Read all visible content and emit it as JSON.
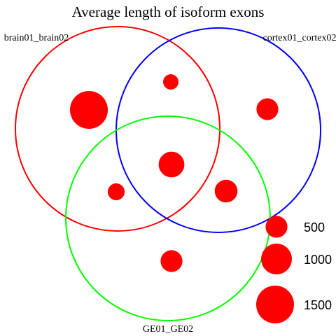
{
  "chart_data": {
    "type": "venn-bubble",
    "title": "Average length of isoform exons",
    "sets": [
      {
        "name": "brain01_brain02",
        "color": "#ff0000"
      },
      {
        "name": "cortex01_cortex02",
        "color": "#0000ff"
      },
      {
        "name": "GE01_GE02",
        "color": "#00ff00"
      }
    ],
    "bubble_color": "#ff0000",
    "regions": [
      {
        "region": "brain01_brain02 only",
        "value": 1500
      },
      {
        "region": "cortex01_cortex02 only",
        "value": 500
      },
      {
        "region": "GE01_GE02 only",
        "value": 500
      },
      {
        "region": "brain01_brain02 & cortex01_cortex02",
        "value": 250
      },
      {
        "region": "brain01_brain02 & GE01_GE02",
        "value": 300
      },
      {
        "region": "cortex01_cortex02 & GE01_GE02",
        "value": 550
      },
      {
        "region": "all three",
        "value": 700
      }
    ],
    "legend": [
      {
        "label": "500",
        "value": 500
      },
      {
        "label": "1000",
        "value": 1000
      },
      {
        "label": "1500",
        "value": 1500
      }
    ]
  }
}
